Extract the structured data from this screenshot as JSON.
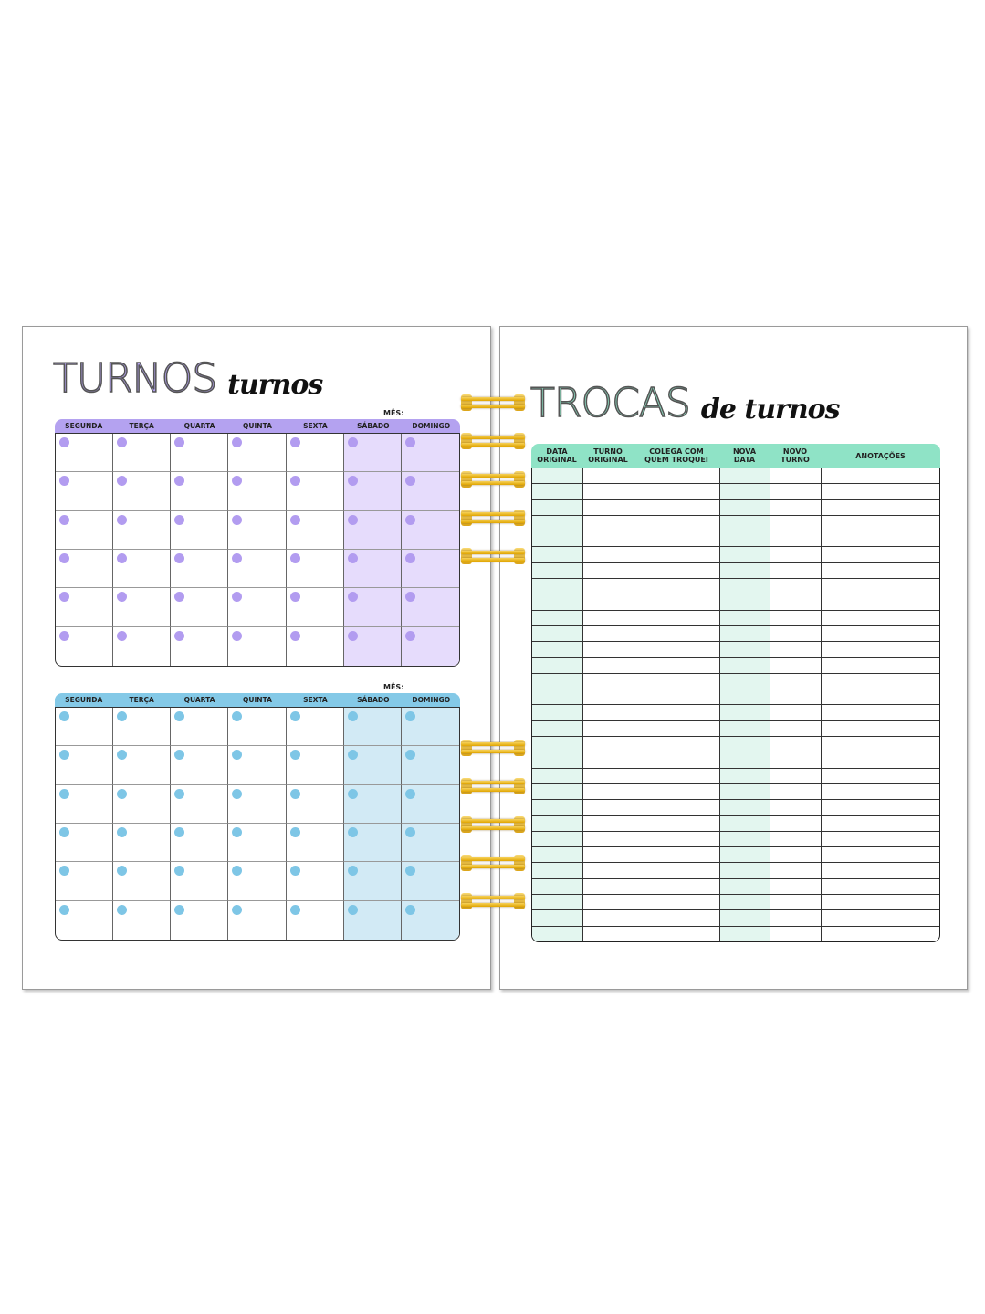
{
  "left_page": {
    "title_big": "TURNOS",
    "title_small": "turnos",
    "mes_label": "MÊS:",
    "weekdays": [
      "SEGUNDA",
      "TERÇA",
      "QUARTA",
      "QUINTA",
      "SEXTA",
      "SÁBADO",
      "DOMINGO"
    ],
    "calendars": [
      {
        "header_color": "#b4a2f0",
        "weekend_fill": "#e6dcfc",
        "dot_color": "#b29cf0"
      },
      {
        "header_color": "#84c9e7",
        "weekend_fill": "#d2eaf5",
        "dot_color": "#7ec6e6"
      }
    ]
  },
  "right_page": {
    "title_big": "TROCAS",
    "title_small": "de turnos",
    "header_color": "#8fe3c6",
    "highlight_fill": "#e3f6ef",
    "columns": [
      "DATA\nORIGINAL",
      "TURNO\nORIGINAL",
      "COLEGA COM\nQUEM TROQUEI",
      "NOVA\nDATA",
      "NOVO\nTURNO",
      "ANOTAÇÕES"
    ]
  },
  "binding": {
    "ring_color": "#f0b91a"
  }
}
